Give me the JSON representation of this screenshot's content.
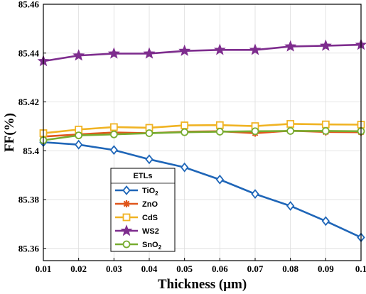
{
  "chart_data": {
    "type": "line",
    "xlabel": "Thickness (μm)",
    "ylabel": "FF(%)",
    "x": [
      0.01,
      0.02,
      0.03,
      0.04,
      0.05,
      0.06,
      0.07,
      0.08,
      0.09,
      0.1
    ],
    "xticks": [
      "0.01",
      "0.02",
      "0.03",
      "0.04",
      "0.05",
      "0.06",
      "0.07",
      "0.08",
      "0.09",
      "0.1"
    ],
    "ylim": [
      85.355,
      85.46
    ],
    "yticks": [
      "85.36",
      "85.38",
      "85.4",
      "85.42",
      "85.44",
      "85.46"
    ],
    "grid": true,
    "legend": {
      "title": "ETLs",
      "position": "lower-left"
    },
    "series": [
      {
        "name": "TiO2",
        "label_html": [
          "TiO",
          "2"
        ],
        "color": "#1f66b8",
        "marker": "diamond",
        "values": [
          85.4035,
          85.4025,
          85.4003,
          85.3965,
          85.3932,
          85.3882,
          85.3823,
          85.3774,
          85.3712,
          85.3645
        ]
      },
      {
        "name": "ZnO",
        "label_html": [
          "ZnO",
          ""
        ],
        "color": "#e0561c",
        "marker": "asterisk",
        "values": [
          85.4058,
          85.4067,
          85.4075,
          85.4072,
          85.4078,
          85.408,
          85.4072,
          85.4082,
          85.4077,
          85.4076
        ]
      },
      {
        "name": "CdS",
        "label_html": [
          "CdS",
          ""
        ],
        "color": "#f0b323",
        "marker": "square",
        "values": [
          85.4072,
          85.4087,
          85.4097,
          85.4094,
          85.4104,
          85.4105,
          85.4101,
          85.411,
          85.4108,
          85.4107
        ]
      },
      {
        "name": "WS2",
        "label_html": [
          "WS2",
          ""
        ],
        "color": "#7e2d8e",
        "marker": "star",
        "values": [
          85.4367,
          85.439,
          85.4398,
          85.4398,
          85.4409,
          85.4413,
          85.4413,
          85.4427,
          85.443,
          85.4434
        ]
      },
      {
        "name": "SnO2",
        "label_html": [
          "SnO",
          "2"
        ],
        "color": "#77ac30",
        "marker": "circle",
        "values": [
          85.4043,
          85.4063,
          85.4067,
          85.4072,
          85.4076,
          85.4078,
          85.408,
          85.4081,
          85.4081,
          85.408
        ]
      }
    ]
  }
}
